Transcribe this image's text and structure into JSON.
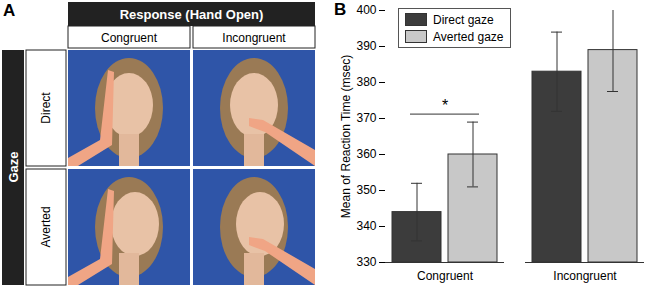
{
  "panel_a": {
    "label": "A",
    "header": "Response (Hand Open)",
    "columns": [
      "Congruent",
      "Incongruent"
    ],
    "row_header": "Gaze",
    "rows": [
      "Direct",
      "Averted"
    ]
  },
  "chart_data": {
    "type": "bar",
    "panel": "B",
    "categories": [
      "Congruent",
      "Incongruent"
    ],
    "series": [
      {
        "name": "Direct gaze",
        "color": "#3c3c3c",
        "values": [
          344,
          383
        ],
        "errors": [
          8,
          11
        ]
      },
      {
        "name": "Averted gaze",
        "color": "#c8c8c8",
        "values": [
          360,
          389
        ],
        "errors": [
          9,
          11.5
        ]
      }
    ],
    "ylabel": "Mean of Reaction Time (msec)",
    "ylim": [
      330,
      400
    ],
    "yticks": [
      330,
      340,
      350,
      360,
      370,
      380,
      390,
      400
    ],
    "legend": "upper left",
    "annotations": [
      {
        "text": "*",
        "category": "Congruent"
      }
    ]
  }
}
